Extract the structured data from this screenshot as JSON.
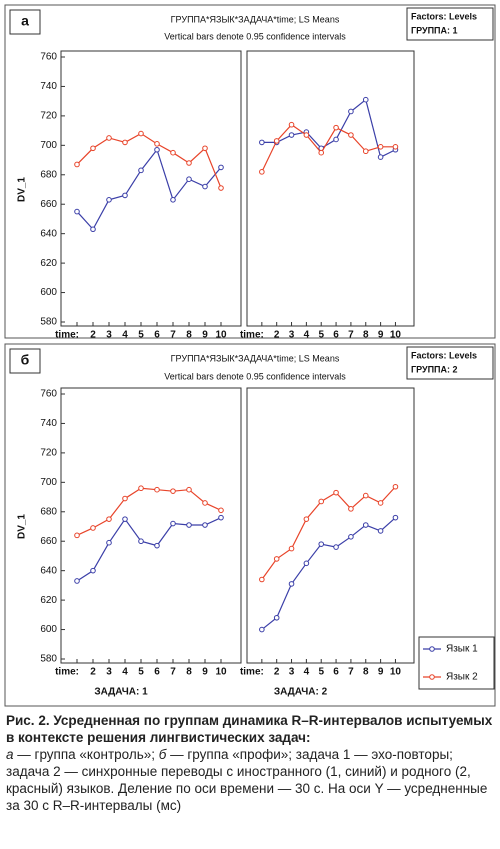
{
  "panels": [
    {
      "label": "а",
      "title": "ГРУППА*ЯЗЫК*ЗАДАЧА*time; LS Means",
      "subtitle": "Vertical bars denote 0.95 confidence intervals",
      "factors_title": "Factors: Levels",
      "factors_level": "ГРУППА: 1"
    },
    {
      "label": "б",
      "title": "ГРУППА*ЯЗЫК*ЗАДАЧА*time; LS Means",
      "subtitle": "Vertical bars denote 0.95 confidence intervals",
      "factors_title": "Factors: Levels",
      "factors_level": "ГРУППА: 2"
    }
  ],
  "chart_data": [
    {
      "type": "line",
      "ylabel": "DV_1",
      "x": [
        1,
        2,
        3,
        4,
        5,
        6,
        7,
        8,
        9,
        10
      ],
      "xlim": [
        0,
        11.25
      ],
      "xticks": [
        {
          "value": 1,
          "label": "time:"
        },
        2,
        3,
        4,
        5,
        6,
        7,
        8,
        9,
        10
      ],
      "ylim": [
        580,
        760
      ],
      "yticks": [
        580,
        600,
        620,
        640,
        660,
        680,
        700,
        720,
        740,
        760
      ],
      "series": [
        {
          "color": "#3b3fa8",
          "values": [
            655,
            643,
            663,
            666,
            683,
            697,
            663,
            677,
            672,
            685
          ]
        },
        {
          "color": "#e8442a",
          "values": [
            687,
            698,
            705,
            702,
            708,
            701,
            695,
            688,
            698,
            671
          ]
        }
      ]
    },
    {
      "type": "line",
      "x": [
        1,
        2,
        3,
        4,
        5,
        6,
        7,
        8,
        9,
        10
      ],
      "xlim": [
        0,
        11.25
      ],
      "xticks": [
        {
          "value": 1,
          "label": "time:"
        },
        2,
        3,
        4,
        5,
        6,
        7,
        8,
        9,
        10
      ],
      "ylim": [
        580,
        760
      ],
      "series": [
        {
          "color": "#3b3fa8",
          "values": [
            702,
            702,
            707,
            709,
            698,
            704,
            723,
            731,
            692,
            697
          ]
        },
        {
          "color": "#e8442a",
          "values": [
            682,
            703,
            714,
            707,
            695,
            712,
            707,
            696,
            699,
            699
          ]
        }
      ]
    },
    {
      "type": "line",
      "ylabel": "DV_1",
      "xlabel": "ЗАДАЧА: 1",
      "x": [
        1,
        2,
        3,
        4,
        5,
        6,
        7,
        8,
        9,
        10
      ],
      "xlim": [
        0,
        11.25
      ],
      "xticks": [
        {
          "value": 1,
          "label": "time:"
        },
        2,
        3,
        4,
        5,
        6,
        7,
        8,
        9,
        10
      ],
      "ylim": [
        580,
        760
      ],
      "yticks": [
        580,
        600,
        620,
        640,
        660,
        680,
        700,
        720,
        740,
        760
      ],
      "series": [
        {
          "color": "#3b3fa8",
          "values": [
            633,
            640,
            659,
            675,
            660,
            657,
            672,
            671,
            671,
            676
          ]
        },
        {
          "color": "#e8442a",
          "values": [
            664,
            669,
            675,
            689,
            696,
            695,
            694,
            695,
            686,
            681
          ]
        }
      ]
    },
    {
      "type": "line",
      "xlabel": "ЗАДАЧА: 2",
      "x": [
        1,
        2,
        3,
        4,
        5,
        6,
        7,
        8,
        9,
        10
      ],
      "xlim": [
        0,
        11.25
      ],
      "xticks": [
        {
          "value": 1,
          "label": "time:"
        },
        2,
        3,
        4,
        5,
        6,
        7,
        8,
        9,
        10
      ],
      "ylim": [
        580,
        760
      ],
      "legend": "bottom-right",
      "series": [
        {
          "name": "Язык 1",
          "color": "#3b3fa8",
          "values": [
            600,
            608,
            631,
            645,
            658,
            656,
            663,
            671,
            667,
            676
          ]
        },
        {
          "name": "Язык 2",
          "color": "#e8442a",
          "values": [
            634,
            648,
            655,
            675,
            687,
            693,
            682,
            691,
            686,
            697
          ]
        }
      ]
    }
  ],
  "caption": {
    "title": "Рис. 2. Усредненная по группам динамика R–R-интервалов испытуемых в контексте решения лингвистических задач:",
    "body": [
      "а",
      " — группа «контроль»; ",
      "б",
      " — группа «профи»; задача 1 — эхо-повторы; задача 2 — синхронные переводы с иностранного (1, синий) и родного (2, красный) языков. Деление по оси времени — 30 с. На оси Y — усредненные за 30 с R–R-интервалы (мс)"
    ]
  }
}
